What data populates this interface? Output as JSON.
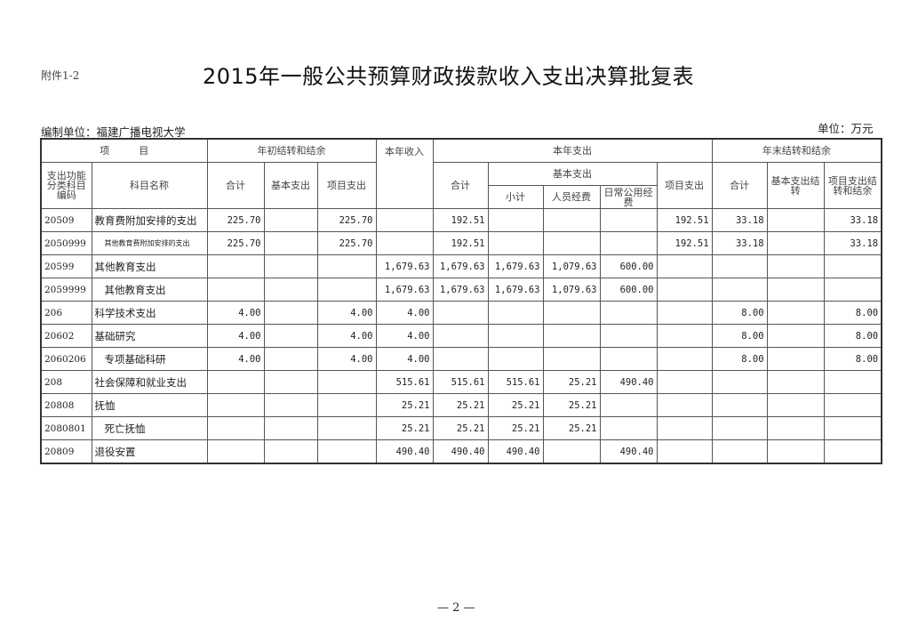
{
  "attachment": "附件1-2",
  "title": "2015年一般公共预算财政拨款收入支出决算批复表",
  "org": "编制单位：福建广播电视大学",
  "unit": "单位：万元",
  "headers": {
    "item": "项　　　目",
    "opening": "年初结转和结余",
    "income": "本年收入",
    "expense": "本年支出",
    "closing": "年末结转和结余",
    "code": "支出功能分类科目编码",
    "name": "科目名称",
    "total": "合计",
    "basic": "基本支出",
    "project": "项目支出",
    "subtotal": "小计",
    "personnel": "人员经费",
    "public": "日常公用经费",
    "closing_basic": "基本支出结转",
    "closing_project": "项目支出结转和结余"
  },
  "rows": [
    [
      "20509",
      "教育费附加安排的支出",
      "225.70",
      "",
      "225.70",
      "",
      "192.51",
      "",
      "",
      "",
      "192.51",
      "33.18",
      "",
      "33.18"
    ],
    [
      "2050999",
      "其他教育费附加安排的支出",
      "225.70",
      "",
      "225.70",
      "",
      "192.51",
      "",
      "",
      "",
      "192.51",
      "33.18",
      "",
      "33.18"
    ],
    [
      "20599",
      "其他教育支出",
      "",
      "",
      "",
      "1,679.63",
      "1,679.63",
      "1,679.63",
      "1,079.63",
      "600.00",
      "",
      "",
      "",
      ""
    ],
    [
      "2059999",
      "其他教育支出",
      "",
      "",
      "",
      "1,679.63",
      "1,679.63",
      "1,679.63",
      "1,079.63",
      "600.00",
      "",
      "",
      "",
      ""
    ],
    [
      "206",
      "科学技术支出",
      "4.00",
      "",
      "4.00",
      "4.00",
      "",
      "",
      "",
      "",
      "",
      "8.00",
      "",
      "8.00"
    ],
    [
      "20602",
      "基础研究",
      "4.00",
      "",
      "4.00",
      "4.00",
      "",
      "",
      "",
      "",
      "",
      "8.00",
      "",
      "8.00"
    ],
    [
      "2060206",
      "专项基础科研",
      "4.00",
      "",
      "4.00",
      "4.00",
      "",
      "",
      "",
      "",
      "",
      "8.00",
      "",
      "8.00"
    ],
    [
      "208",
      "社会保障和就业支出",
      "",
      "",
      "",
      "515.61",
      "515.61",
      "515.61",
      "25.21",
      "490.40",
      "",
      "",
      "",
      ""
    ],
    [
      "20808",
      "抚恤",
      "",
      "",
      "",
      "25.21",
      "25.21",
      "25.21",
      "25.21",
      "",
      "",
      "",
      "",
      ""
    ],
    [
      "2080801",
      "死亡抚恤",
      "",
      "",
      "",
      "25.21",
      "25.21",
      "25.21",
      "25.21",
      "",
      "",
      "",
      "",
      ""
    ],
    [
      "20809",
      "退役安置",
      "",
      "",
      "",
      "490.40",
      "490.40",
      "490.40",
      "",
      "490.40",
      "",
      "",
      "",
      ""
    ]
  ],
  "page": "— 2 —"
}
